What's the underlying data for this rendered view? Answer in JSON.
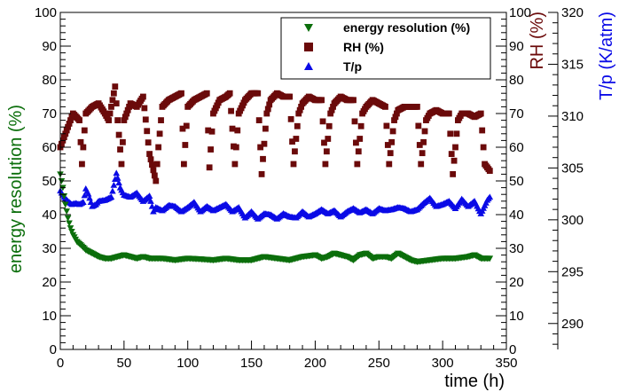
{
  "chart_data": {
    "type": "scatter",
    "title": "",
    "xlabel": "time (h)",
    "ylabel_left": "energy resolution (%)",
    "ylabel_right_rh": "RH (%)",
    "ylabel_right_tp": "T/p (K/atm)",
    "xlim": [
      0,
      350
    ],
    "ylim_left": [
      0,
      100
    ],
    "ylim_rh": [
      0,
      100
    ],
    "ylim_tp": [
      287.5,
      320
    ],
    "x_ticks": [
      0,
      50,
      100,
      150,
      200,
      250,
      300,
      350
    ],
    "x_tick_labels": [
      "0",
      "50",
      "100",
      "150",
      "200",
      "250",
      "300",
      "350"
    ],
    "y_ticks_left": [
      0,
      10,
      20,
      30,
      40,
      50,
      60,
      70,
      80,
      90,
      100
    ],
    "y_tick_labels_left": [
      "0",
      "10",
      "20",
      "30",
      "40",
      "50",
      "60",
      "70",
      "80",
      "90",
      "100"
    ],
    "y_ticks_rh": [
      0,
      10,
      20,
      30,
      40,
      50,
      60,
      70,
      80,
      90,
      100
    ],
    "y_tick_labels_rh": [
      "0",
      "10",
      "20",
      "30",
      "40",
      "50",
      "60",
      "70",
      "80",
      "90",
      "100"
    ],
    "y_ticks_tp": [
      290,
      295,
      300,
      305,
      310,
      315,
      320
    ],
    "y_tick_labels_tp": [
      "290",
      "295",
      "300",
      "305",
      "310",
      "315",
      "320"
    ],
    "legend_position": "top-right",
    "series": [
      {
        "name": "energy resolution (%)",
        "axis": "left",
        "marker": "triangle-down",
        "color": "#0b6e0b",
        "x": [
          0,
          2,
          4,
          6,
          8,
          10,
          13,
          16,
          20,
          25,
          30,
          35,
          40,
          45,
          50,
          55,
          60,
          65,
          70,
          75,
          80,
          90,
          100,
          110,
          120,
          130,
          140,
          150,
          160,
          170,
          180,
          190,
          200,
          205,
          210,
          215,
          220,
          225,
          230,
          235,
          240,
          245,
          250,
          255,
          260,
          265,
          270,
          275,
          280,
          290,
          300,
          310,
          320,
          325,
          330,
          337
        ],
        "values": [
          52,
          48,
          43,
          39,
          36,
          34,
          32,
          31,
          29.5,
          28.5,
          27.5,
          27,
          27,
          27.5,
          28,
          27.5,
          27,
          27.5,
          27,
          27,
          27,
          26.5,
          27,
          26.8,
          26.5,
          27,
          26.5,
          26.5,
          27.5,
          27,
          26.5,
          27.5,
          28,
          27,
          27.5,
          28.5,
          28,
          27.5,
          26.5,
          28,
          28.5,
          27,
          27.5,
          27.5,
          27,
          28.5,
          27.5,
          26.5,
          26,
          26.5,
          27,
          27,
          27.5,
          28,
          27,
          27
        ]
      },
      {
        "name": "RH (%)",
        "axis": "rh",
        "marker": "square",
        "color": "#6b0a0a",
        "x": [
          0,
          5,
          10,
          15,
          17,
          20,
          25,
          30,
          35,
          38,
          40,
          43,
          45,
          48,
          50,
          55,
          60,
          65,
          70,
          75,
          77,
          80,
          85,
          90,
          95,
          97,
          100,
          105,
          110,
          115,
          117,
          120,
          125,
          130,
          133,
          137,
          140,
          145,
          150,
          155,
          158,
          162,
          165,
          170,
          175,
          180,
          183,
          187,
          190,
          195,
          200,
          205,
          208,
          212,
          215,
          220,
          225,
          230,
          233,
          237,
          240,
          245,
          250,
          255,
          258,
          262,
          265,
          270,
          275,
          280,
          283,
          287,
          290,
          295,
          300,
          305,
          308,
          312,
          315,
          320,
          325,
          330,
          333,
          337
        ],
        "values": [
          60,
          65,
          70,
          68,
          55,
          70,
          72,
          73,
          70,
          68,
          72,
          78,
          68,
          55,
          68,
          73,
          72,
          75,
          58,
          50,
          60,
          72,
          74,
          75,
          76,
          55,
          72,
          74,
          75,
          76,
          54,
          70,
          74,
          75,
          76,
          55,
          70,
          74,
          76,
          76,
          52,
          70,
          74,
          76,
          75,
          75,
          55,
          70,
          73,
          75,
          74,
          74,
          55,
          70,
          73,
          75,
          74,
          74,
          55,
          70,
          72,
          74,
          73,
          72,
          55,
          68,
          71,
          72,
          72,
          72,
          55,
          68,
          70,
          71,
          70,
          70,
          52,
          68,
          70,
          70,
          69,
          70,
          55,
          53
        ]
      },
      {
        "name": "T/p",
        "axis": "tp",
        "marker": "triangle-up",
        "color": "#0a0ae6",
        "x": [
          0,
          3,
          6,
          9,
          12,
          15,
          18,
          20,
          22,
          25,
          28,
          30,
          35,
          40,
          44,
          47,
          50,
          55,
          60,
          65,
          70,
          73,
          75,
          80,
          85,
          90,
          95,
          100,
          105,
          110,
          115,
          120,
          125,
          130,
          135,
          140,
          145,
          150,
          155,
          160,
          165,
          170,
          175,
          180,
          185,
          190,
          195,
          200,
          205,
          210,
          215,
          220,
          225,
          230,
          235,
          240,
          245,
          250,
          255,
          260,
          265,
          270,
          275,
          280,
          285,
          290,
          295,
          300,
          305,
          310,
          315,
          320,
          325,
          330,
          335,
          337
        ],
        "values": [
          302.8,
          302.2,
          301.8,
          301.5,
          301.6,
          301.5,
          301.7,
          303,
          302.5,
          301.3,
          301.5,
          301.8,
          301.9,
          302.2,
          304.5,
          303.1,
          302.4,
          302.2,
          302.6,
          301.8,
          302.3,
          300.8,
          301.2,
          300.9,
          301.4,
          301.3,
          300.8,
          301.2,
          301.7,
          300.8,
          301.3,
          300.9,
          301.2,
          301.5,
          300.8,
          301.2,
          300.2,
          300.8,
          300.1,
          300.6,
          300.5,
          300.1,
          300.6,
          300.3,
          300.2,
          300.8,
          300.3,
          300.6,
          301,
          300.6,
          300.9,
          300.3,
          300.8,
          301.1,
          300.7,
          301,
          300.6,
          301.1,
          300.9,
          301,
          301.2,
          301.1,
          300.8,
          301,
          301.6,
          302.1,
          301.3,
          301.5,
          301.8,
          301.1,
          302,
          301.3,
          301.8,
          300.6,
          301.9,
          302.2
        ]
      }
    ]
  }
}
